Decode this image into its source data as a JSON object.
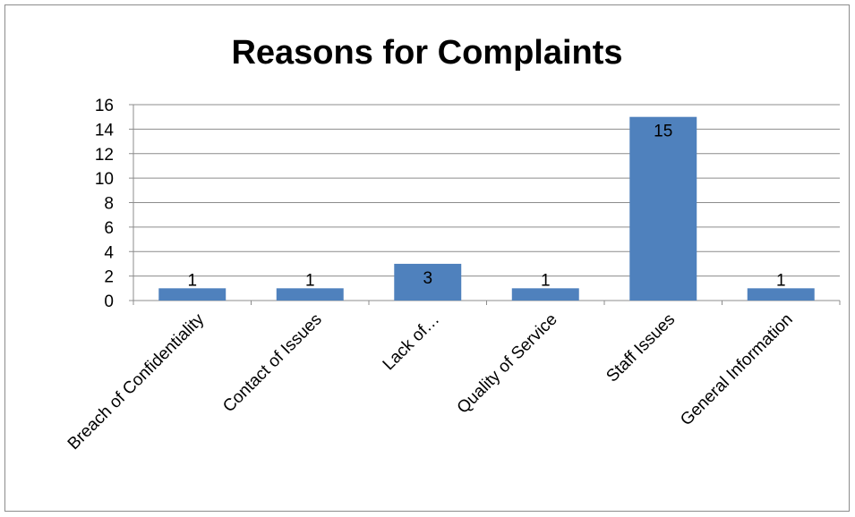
{
  "chart_data": {
    "type": "bar",
    "title": "Reasons for Complaints",
    "categories": [
      "Breach of Confidentiality",
      "Contact of Issues",
      "Lack of…",
      "Quality of Service",
      "Staff Issues",
      "General Information"
    ],
    "values": [
      1,
      1,
      3,
      1,
      15,
      1
    ],
    "data_labels": [
      "1",
      "1",
      "3",
      "1",
      "15",
      "1"
    ],
    "ylim": [
      0,
      16
    ],
    "yticks": [
      "0",
      "2",
      "4",
      "6",
      "8",
      "10",
      "12",
      "14",
      "16"
    ],
    "grid": true,
    "legend": "none",
    "bar_color": "#4f81bd",
    "grid_color": "#8c8c8c"
  }
}
